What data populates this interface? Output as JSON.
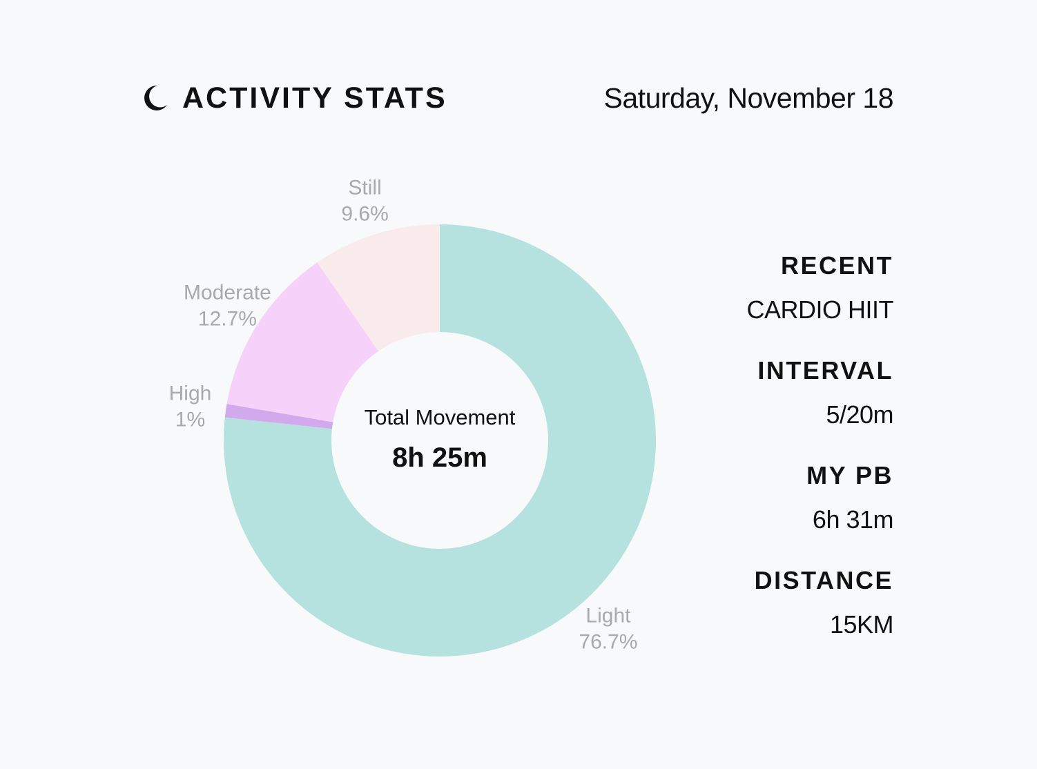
{
  "header": {
    "title": "ACTIVITY STATS",
    "date": "Saturday, November 18",
    "icon": "moon-icon"
  },
  "center": {
    "label": "Total Movement",
    "value": "8h 25m"
  },
  "stats": [
    {
      "label": "RECENT",
      "value": "CARDIO HIIT"
    },
    {
      "label": "INTERVAL",
      "value": "5/20m"
    },
    {
      "label": "MY PB",
      "value": "6h 31m"
    },
    {
      "label": "DISTANCE",
      "value": "15KM"
    }
  ],
  "chart_data": {
    "type": "pie",
    "title": "",
    "subtitle": "",
    "categories": [
      "Light",
      "High",
      "Moderate",
      "Still"
    ],
    "values": [
      76.7,
      1,
      12.7,
      9.6
    ],
    "labels": [
      "76.7%",
      "1%",
      "12.7%",
      "9.6%"
    ],
    "colors": [
      "#b5e2df",
      "#d1a9ec",
      "#f6d1f9",
      "#f9eaeb"
    ],
    "donut": true,
    "legend": "none"
  }
}
